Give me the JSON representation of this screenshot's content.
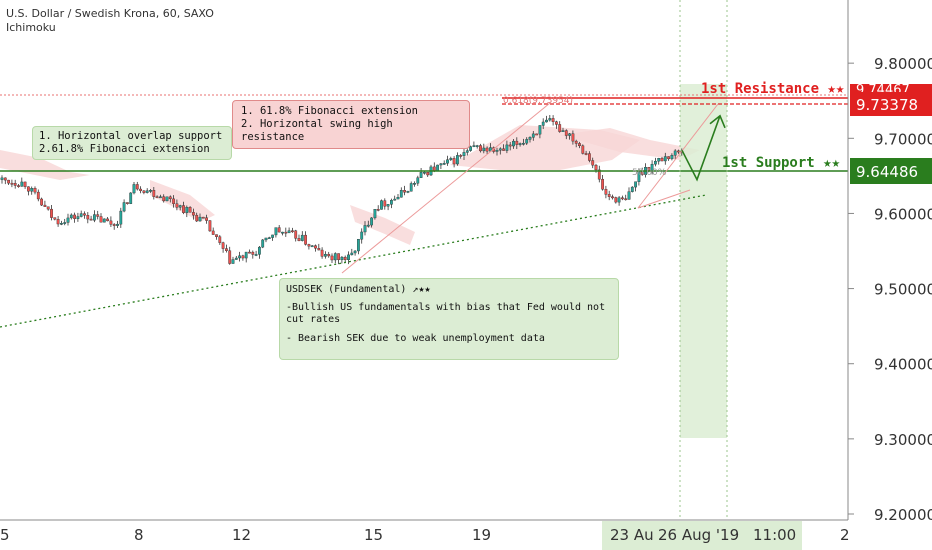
{
  "header": {
    "title": "U.S. Dollar / Swedish Krona, 60, SAXO",
    "indicator": "Ichimoku"
  },
  "annotations": {
    "left_box": [
      "1. Horizontal overlap support",
      "2.61.8% Fibonacci extension"
    ],
    "top_box": [
      "1. 61.8% Fibonacci extension",
      "2. Horizontal swing high resistance"
    ],
    "fundamental_box": {
      "title": "USDSEK (Fundamental) ↗★★",
      "lines": [
        "-Bullish US fundamentals with bias that Fed would not",
        "cut rates",
        "",
        "- Bearish SEK due to weak unemployment data"
      ]
    },
    "resistance_label": "1st Resistance ★★",
    "support_label": "1st Support ★★",
    "fib_top_label": "0.618(9.73954)",
    "fib_mid_label": "50.00%"
  },
  "price_labels": {
    "resistance": "9.73378",
    "support": "9.64486",
    "hidden_partial": "9.74467"
  },
  "colors": {
    "bull": "#26a69a",
    "bear": "#ef5350",
    "resistance": "#e02020",
    "support": "#2a7d1e",
    "trend": "#2a7d1e",
    "cloud": "#f7d6d6",
    "time_highlight": "#dcedd4"
  },
  "chart_data": {
    "type": "candlestick",
    "y_axis": {
      "ticks": [
        9.8,
        9.7,
        9.6,
        9.5,
        9.4,
        9.3,
        9.2
      ],
      "tick_labels": [
        "9.80000",
        "9.70000",
        "9.60000",
        "9.50000",
        "9.40000",
        "9.30000",
        "9.20000"
      ],
      "range": [
        9.185,
        9.875
      ]
    },
    "x_axis": {
      "tick_labels": [
        "5",
        "8",
        "12",
        "15",
        "19",
        "23 Au",
        "26 Aug '19",
        "11:00",
        "2"
      ]
    },
    "levels": {
      "resistance": 9.73378,
      "support": 9.64486,
      "resistance_top": 9.74467
    },
    "path_points": [
      {
        "x": 0,
        "price": 9.645
      },
      {
        "x": 25,
        "price": 9.64
      },
      {
        "x": 55,
        "price": 9.59
      },
      {
        "x": 85,
        "price": 9.598
      },
      {
        "x": 115,
        "price": 9.585
      },
      {
        "x": 135,
        "price": 9.638
      },
      {
        "x": 170,
        "price": 9.618
      },
      {
        "x": 205,
        "price": 9.588
      },
      {
        "x": 230,
        "price": 9.537
      },
      {
        "x": 255,
        "price": 9.547
      },
      {
        "x": 275,
        "price": 9.578
      },
      {
        "x": 300,
        "price": 9.568
      },
      {
        "x": 325,
        "price": 9.542
      },
      {
        "x": 350,
        "price": 9.54
      },
      {
        "x": 375,
        "price": 9.608
      },
      {
        "x": 400,
        "price": 9.624
      },
      {
        "x": 425,
        "price": 9.655
      },
      {
        "x": 450,
        "price": 9.668
      },
      {
        "x": 475,
        "price": 9.688
      },
      {
        "x": 500,
        "price": 9.682
      },
      {
        "x": 525,
        "price": 9.698
      },
      {
        "x": 548,
        "price": 9.722
      },
      {
        "x": 570,
        "price": 9.705
      },
      {
        "x": 590,
        "price": 9.675
      },
      {
        "x": 605,
        "price": 9.625
      },
      {
        "x": 625,
        "price": 9.615
      },
      {
        "x": 640,
        "price": 9.655
      },
      {
        "x": 660,
        "price": 9.672
      },
      {
        "x": 682,
        "price": 9.684
      }
    ],
    "projection": [
      {
        "x": 682,
        "price": 9.684
      },
      {
        "x": 697,
        "price": 9.645
      },
      {
        "x": 720,
        "price": 9.73
      }
    ]
  }
}
